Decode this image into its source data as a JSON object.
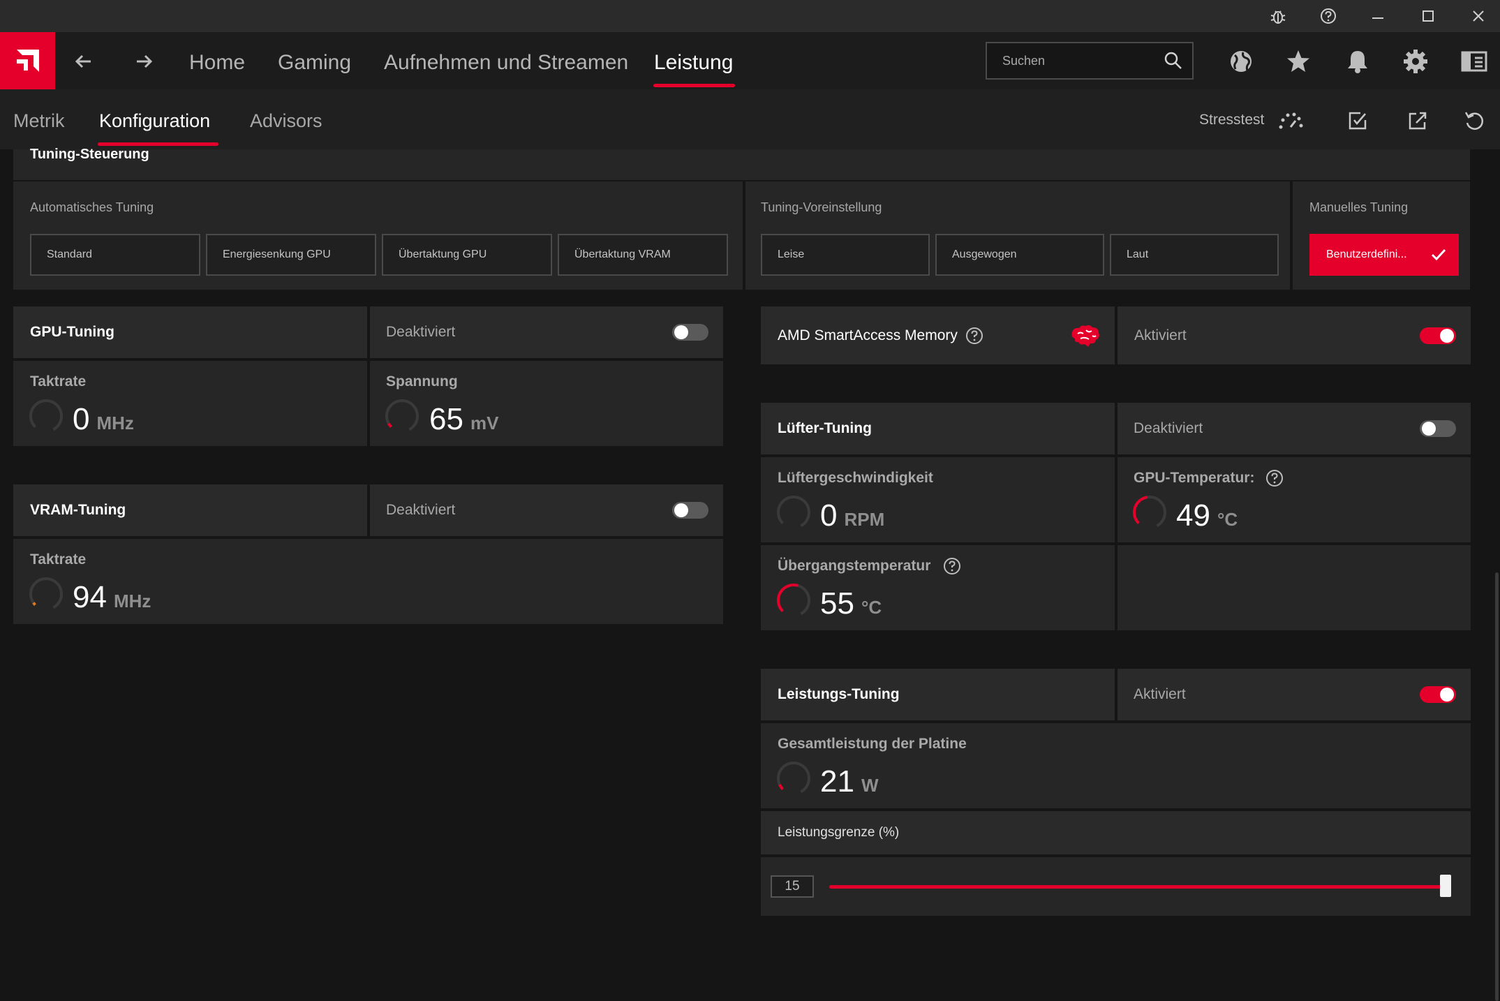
{
  "window": {
    "icons": [
      "bug-icon",
      "help-icon",
      "minimize-icon",
      "maximize-icon",
      "close-icon"
    ]
  },
  "topnav": {
    "items": [
      "Home",
      "Gaming",
      "Aufnehmen und Streamen",
      "Leistung"
    ],
    "active": "Leistung",
    "search_placeholder": "Suchen",
    "accent": "#e4002b"
  },
  "subnav": {
    "tabs": [
      "Metrik",
      "Konfiguration",
      "Advisors"
    ],
    "active": "Konfiguration",
    "stresstest_label": "Stresstest"
  },
  "tuning_control": {
    "title": "Tuning-Steuerung",
    "auto": {
      "label": "Automatisches Tuning",
      "buttons": [
        "Standard",
        "Energiesenkung GPU",
        "Übertaktung GPU",
        "Übertaktung VRAM"
      ]
    },
    "preset": {
      "label": "Tuning-Voreinstellung",
      "buttons": [
        "Leise",
        "Ausgewogen",
        "Laut"
      ]
    },
    "manual": {
      "label": "Manuelles Tuning",
      "button": "Benutzerdefini..."
    }
  },
  "gpu_tuning": {
    "title": "GPU-Tuning",
    "state": "Deaktiviert",
    "enabled": false,
    "clock": {
      "label": "Taktrate",
      "value": "0",
      "unit": "MHz"
    },
    "voltage": {
      "label": "Spannung",
      "value": "65",
      "unit": "mV"
    }
  },
  "vram_tuning": {
    "title": "VRAM-Tuning",
    "state": "Deaktiviert",
    "enabled": false,
    "clock": {
      "label": "Taktrate",
      "value": "94",
      "unit": "MHz"
    }
  },
  "smart_access_memory": {
    "title": "AMD SmartAccess Memory",
    "state": "Aktiviert",
    "enabled": true
  },
  "fan_tuning": {
    "title": "Lüfter-Tuning",
    "state": "Deaktiviert",
    "enabled": false,
    "fan_speed": {
      "label": "Lüftergeschwindigkeit",
      "value": "0",
      "unit": "RPM"
    },
    "gpu_temp": {
      "label": "GPU-Temperatur:",
      "value": "49",
      "unit": "°C"
    },
    "junction_temp": {
      "label": "Übergangstemperatur",
      "value": "55",
      "unit": "°C"
    }
  },
  "power_tuning": {
    "title": "Leistungs-Tuning",
    "state": "Aktiviert",
    "enabled": true,
    "board_power": {
      "label": "Gesamtleistung der Platine",
      "value": "21",
      "unit": "W"
    },
    "power_limit": {
      "label": "Leistungsgrenze (%)",
      "value": "15"
    }
  }
}
